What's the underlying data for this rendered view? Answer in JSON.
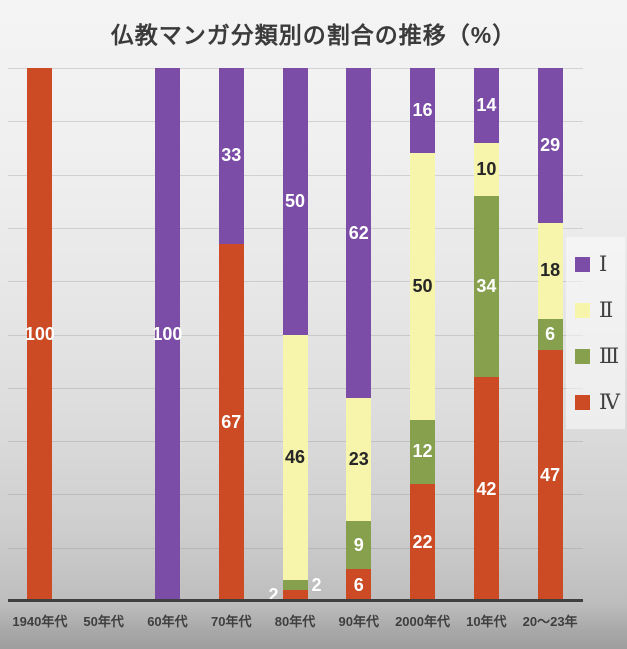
{
  "title": "仏教マンガ分類別の割合の推移（%）",
  "chart_data": {
    "type": "bar",
    "stacked": true,
    "orientation": "vertical",
    "title": "仏教マンガ分類別の割合の推移（%）",
    "xlabel": "",
    "ylabel": "",
    "ylim": [
      0,
      100
    ],
    "grid": "horizontal gridlines every 10%, no y tick labels",
    "legend_position": "right",
    "categories": [
      "1940年代",
      "50年代",
      "60年代",
      "70年代",
      "80年代",
      "90年代",
      "2000年代",
      "10年代",
      "20〜23年"
    ],
    "series": [
      {
        "name": "Ⅳ",
        "color": "#cd4b24",
        "label_color": "#ffffff",
        "values": [
          100,
          0,
          0,
          67,
          2,
          6,
          22,
          42,
          47
        ]
      },
      {
        "name": "Ⅲ",
        "color": "#86a04d",
        "label_color": "#ffffff",
        "values": [
          0,
          0,
          0,
          0,
          2,
          9,
          12,
          34,
          6
        ]
      },
      {
        "name": "Ⅱ",
        "color": "#f7f4ab",
        "label_color": "#262626",
        "values": [
          0,
          0,
          0,
          0,
          46,
          23,
          50,
          10,
          18
        ]
      },
      {
        "name": "Ⅰ",
        "color": "#7b4da7",
        "label_color": "#ffffff",
        "values": [
          0,
          0,
          100,
          33,
          50,
          62,
          16,
          14,
          29
        ]
      }
    ],
    "legend": {
      "entries": [
        {
          "label": "Ⅰ",
          "color": "#7b4da7"
        },
        {
          "label": "Ⅱ",
          "color": "#f7f4ab"
        },
        {
          "label": "Ⅲ",
          "color": "#86a04d"
        },
        {
          "label": "Ⅳ",
          "color": "#cd4b24"
        }
      ]
    }
  },
  "colors": {
    "title_text": "#3b3b3b",
    "axis_line": "#3f3f3f",
    "axis_label_text": "#3f3f3f",
    "legend_text": "#3f3f3f"
  }
}
